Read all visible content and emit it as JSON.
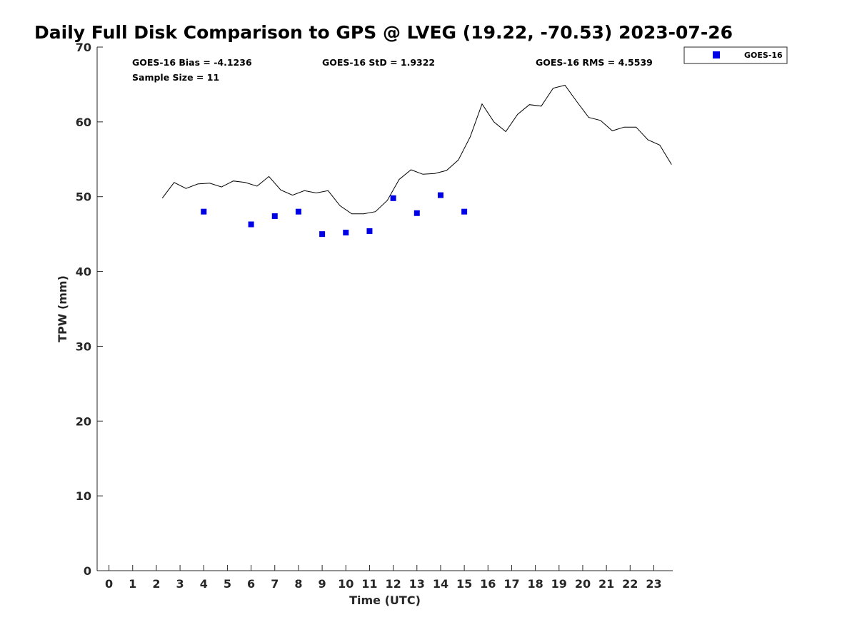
{
  "chart_data": {
    "type": "scatter",
    "title": "Daily Full Disk Comparison to GPS @ LVEG (19.22, -70.53) 2023-07-26",
    "xlabel": "Time (UTC)",
    "ylabel": "TPW (mm)",
    "xlim": [
      -0.5,
      23.8
    ],
    "ylim": [
      0,
      70
    ],
    "xticks": [
      0,
      1,
      2,
      3,
      4,
      5,
      6,
      7,
      8,
      9,
      10,
      11,
      12,
      13,
      14,
      15,
      16,
      17,
      18,
      19,
      20,
      21,
      22,
      23
    ],
    "yticks": [
      0,
      10,
      20,
      30,
      40,
      50,
      60,
      70
    ],
    "grid": false,
    "legend_position": "outside-top-right",
    "stats": {
      "bias": "GOES-16 Bias = -4.1236",
      "std": "GOES-16 StD = 1.9322",
      "rms": "GOES-16 RMS = 4.5539",
      "sample": "Sample Size = 11"
    },
    "series": [
      {
        "name": "GOES-16",
        "type": "scatter",
        "marker": "square",
        "color": "#0000e6",
        "x": [
          4,
          6,
          7,
          8,
          9,
          10,
          11,
          12,
          13,
          14,
          15
        ],
        "y": [
          48.0,
          46.3,
          47.4,
          48.0,
          45.0,
          45.2,
          45.4,
          49.8,
          47.8,
          50.2,
          48.0
        ]
      },
      {
        "type": "line",
        "color": "#000000",
        "x": [
          2.25,
          2.75,
          3.25,
          3.75,
          4.25,
          4.75,
          5.25,
          5.75,
          6.25,
          6.75,
          7.25,
          7.75,
          8.25,
          8.75,
          9.25,
          9.75,
          10.25,
          10.75,
          11.25,
          11.75,
          12.25,
          12.75,
          13.25,
          13.75,
          14.25,
          14.75,
          15.25,
          15.75,
          16.25,
          16.75,
          17.25,
          17.75,
          18.25,
          18.75,
          19.25,
          19.75,
          20.25,
          20.75,
          21.25,
          21.75,
          22.25,
          22.75,
          23.25,
          23.75
        ],
        "y": [
          49.8,
          51.9,
          51.1,
          51.7,
          51.8,
          51.3,
          52.1,
          51.9,
          51.4,
          52.7,
          50.9,
          50.2,
          50.8,
          50.5,
          50.8,
          48.8,
          47.7,
          47.7,
          48.0,
          49.5,
          52.3,
          53.6,
          53.0,
          53.1,
          53.5,
          54.9,
          58.0,
          62.4,
          60.0,
          58.7,
          61.0,
          62.3,
          62.1,
          64.5,
          64.9,
          62.7,
          60.6,
          60.2,
          58.8,
          59.3,
          59.3,
          57.6,
          56.9,
          54.3
        ]
      }
    ]
  }
}
